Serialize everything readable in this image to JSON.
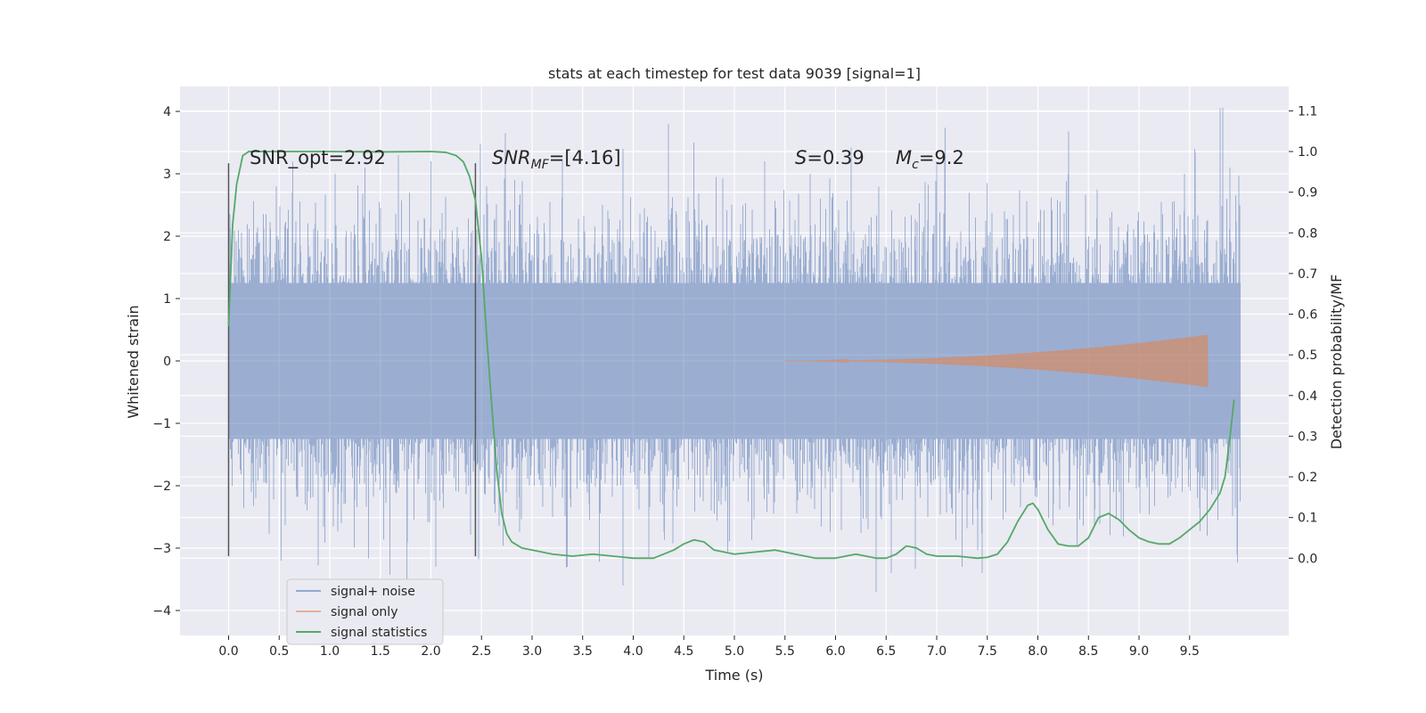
{
  "chart_data": {
    "type": "line",
    "title": "stats at each timestep for test data 9039 [signal=1]",
    "xlabel": "Time (s)",
    "ylabel": "Whitened strain",
    "y2label": "Detection probability/MF",
    "xlim": [
      -0.48,
      10.48
    ],
    "ylim": [
      -4.4,
      4.4
    ],
    "y2lim": [
      -0.19,
      1.16
    ],
    "grid": true,
    "legend_position": "lower-left",
    "x_ticks": [
      "0.0",
      "0.5",
      "1.0",
      "1.5",
      "2.0",
      "2.5",
      "3.0",
      "3.5",
      "4.0",
      "4.5",
      "5.0",
      "5.5",
      "6.0",
      "6.5",
      "7.0",
      "7.5",
      "8.0",
      "8.5",
      "9.0",
      "9.5"
    ],
    "y_ticks": [
      "−4",
      "−3",
      "−2",
      "−1",
      "0",
      "1",
      "2",
      "3",
      "4"
    ],
    "y2_ticks": [
      "0.0",
      "0.1",
      "0.2",
      "0.3",
      "0.4",
      "0.5",
      "0.6",
      "0.7",
      "0.8",
      "0.9",
      "1.0",
      "1.1"
    ],
    "annotations": {
      "snr_opt": "SNR_opt=2.92",
      "snr_mf_base": "SNR",
      "snr_mf_sub": "MF",
      "snr_mf_value": "=[4.16]",
      "s_symbol": "S",
      "s_value": "=0.39",
      "mc_symbol": "M",
      "mc_sub": "c",
      "mc_value": "=9.2"
    },
    "markers": {
      "vlines_x": [
        0.0,
        2.44
      ],
      "vline_ymin": -3.13,
      "vline_ymax": 3.17
    },
    "series": [
      {
        "name": "signal+ noise",
        "color": "#4c72b0",
        "style": "noise",
        "x_range": [
          0.0,
          10.0
        ],
        "std": 1.0,
        "extremes": [
          {
            "x": 0.02,
            "y": 1.5
          },
          {
            "x": 0.47,
            "y": 2.8
          },
          {
            "x": 0.52,
            "y": -3.2
          },
          {
            "x": 1.35,
            "y": 3.1
          },
          {
            "x": 1.68,
            "y": 3.3
          },
          {
            "x": 1.76,
            "y": -3.5
          },
          {
            "x": 2.0,
            "y": 3.2
          },
          {
            "x": 2.05,
            "y": -3.3
          },
          {
            "x": 2.55,
            "y": 2.8
          },
          {
            "x": 3.3,
            "y": 3.2
          },
          {
            "x": 3.35,
            "y": -3.3
          },
          {
            "x": 3.9,
            "y": 3.4
          },
          {
            "x": 3.9,
            "y": -3.6
          },
          {
            "x": 4.35,
            "y": 3.8
          },
          {
            "x": 4.6,
            "y": 3.5
          },
          {
            "x": 5.3,
            "y": 3.2
          },
          {
            "x": 5.75,
            "y": 3.0
          },
          {
            "x": 6.4,
            "y": -3.7
          },
          {
            "x": 6.55,
            "y": -3.4
          },
          {
            "x": 7.0,
            "y": 3.2
          },
          {
            "x": 7.25,
            "y": -3.3
          },
          {
            "x": 7.45,
            "y": -3.4
          },
          {
            "x": 8.3,
            "y": 3.0
          },
          {
            "x": 9.45,
            "y": 3.0
          },
          {
            "x": 9.55,
            "y": 3.4
          },
          {
            "x": 9.8,
            "y": 4.05
          },
          {
            "x": 9.9,
            "y": 3.1
          },
          {
            "x": 9.97,
            "y": -3.1
          }
        ]
      },
      {
        "name": "signal only",
        "color": "#dd8452",
        "style": "chirp",
        "x_range": [
          5.5,
          9.68
        ],
        "amplitude_end": 0.42
      },
      {
        "name": "signal statistics",
        "color": "#55a868",
        "style": "line",
        "axis": "y2",
        "x": [
          0.0,
          0.04,
          0.08,
          0.14,
          0.2,
          0.3,
          0.5,
          1.0,
          1.5,
          2.0,
          2.15,
          2.25,
          2.32,
          2.38,
          2.44,
          2.5,
          2.55,
          2.6,
          2.65,
          2.7,
          2.75,
          2.8,
          2.9,
          3.0,
          3.2,
          3.4,
          3.6,
          3.8,
          4.0,
          4.2,
          4.4,
          4.5,
          4.6,
          4.7,
          4.8,
          5.0,
          5.2,
          5.4,
          5.6,
          5.8,
          6.0,
          6.1,
          6.2,
          6.3,
          6.4,
          6.5,
          6.6,
          6.7,
          6.8,
          6.9,
          7.0,
          7.2,
          7.4,
          7.5,
          7.6,
          7.7,
          7.8,
          7.9,
          7.95,
          8.0,
          8.1,
          8.2,
          8.3,
          8.4,
          8.5,
          8.6,
          8.7,
          8.8,
          8.9,
          9.0,
          9.1,
          9.2,
          9.3,
          9.4,
          9.5,
          9.6,
          9.7,
          9.8,
          9.85,
          9.9,
          9.94
        ],
        "y": [
          0.57,
          0.82,
          0.92,
          0.99,
          1.0,
          1.0,
          1.0,
          1.0,
          0.999,
          1.0,
          0.998,
          0.99,
          0.975,
          0.94,
          0.88,
          0.74,
          0.55,
          0.38,
          0.22,
          0.11,
          0.06,
          0.04,
          0.025,
          0.02,
          0.01,
          0.005,
          0.01,
          0.005,
          0.0,
          0.0,
          0.02,
          0.035,
          0.045,
          0.04,
          0.02,
          0.01,
          0.015,
          0.02,
          0.01,
          0.0,
          0.0,
          0.005,
          0.01,
          0.005,
          0.0,
          0.0,
          0.01,
          0.03,
          0.025,
          0.01,
          0.005,
          0.005,
          0.0,
          0.002,
          0.01,
          0.04,
          0.09,
          0.13,
          0.135,
          0.12,
          0.07,
          0.035,
          0.03,
          0.03,
          0.05,
          0.1,
          0.11,
          0.095,
          0.07,
          0.05,
          0.04,
          0.035,
          0.035,
          0.05,
          0.07,
          0.09,
          0.12,
          0.16,
          0.2,
          0.3,
          0.39
        ]
      }
    ]
  }
}
